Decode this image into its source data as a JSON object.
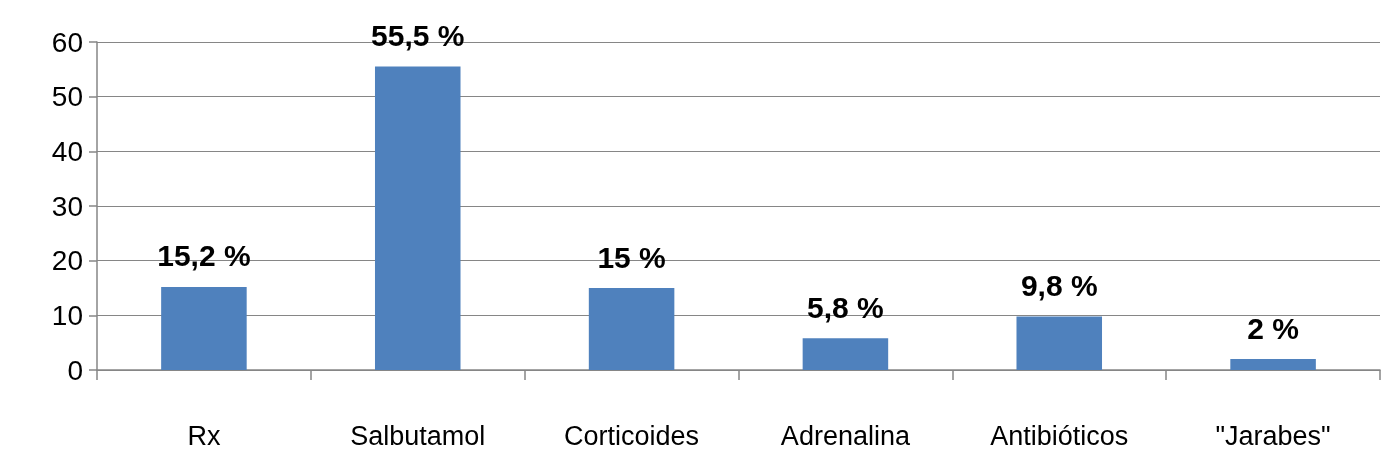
{
  "chart_data": {
    "type": "bar",
    "categories": [
      "Rx",
      "Salbutamol",
      "Corticoides",
      "Adrenalina",
      "Antibióticos",
      "\"Jarabes\""
    ],
    "values": [
      15.2,
      55.5,
      15,
      5.8,
      9.8,
      2
    ],
    "value_labels": [
      "15,2 %",
      "55,5 %",
      "15 %",
      "5,8 %",
      "9,8 %",
      "2 %"
    ],
    "color": "#4f81bd",
    "ylim": [
      0,
      60
    ],
    "yticks": [
      0,
      10,
      20,
      30,
      40,
      50,
      60
    ],
    "grid": "y"
  }
}
